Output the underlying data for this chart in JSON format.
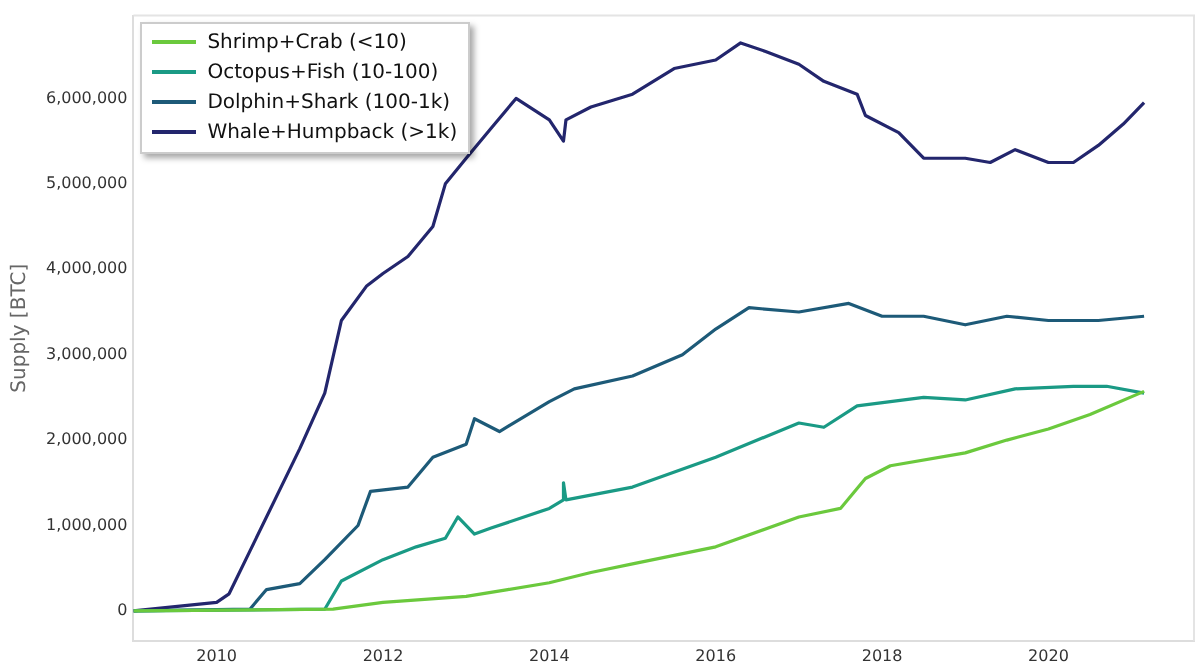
{
  "chart_data": {
    "type": "line",
    "ylabel": "Supply [BTC]",
    "legend": "top left",
    "grid": false,
    "marker": "none",
    "line_style": "solid",
    "xlim": [
      2009,
      2021.75
    ],
    "xticks": [
      2010,
      2012,
      2014,
      2016,
      2018,
      2020
    ],
    "ylim": [
      -350000,
      6970000
    ],
    "yticks": [
      {
        "value": 0,
        "label": "0"
      },
      {
        "value": 1000000,
        "label": "1,000,000"
      },
      {
        "value": 2000000,
        "label": "2,000,000"
      },
      {
        "value": 3000000,
        "label": "3,000,000"
      },
      {
        "value": 4000000,
        "label": "4,000,000"
      },
      {
        "value": 5000000,
        "label": "5,000,000"
      },
      {
        "value": 6000000,
        "label": "6,000,000"
      }
    ],
    "series": [
      {
        "name": "Shrimp+Crab (<10)",
        "color": "#6bc93d",
        "x": [
          2009,
          2011.4,
          2012,
          2013,
          2013.5,
          2014,
          2014.5,
          2015,
          2016,
          2017,
          2017.5,
          2017.8,
          2018.1,
          2019,
          2019.5,
          2020,
          2020.5,
          2021.15
        ],
        "values": [
          0,
          20000,
          100000,
          170000,
          250000,
          330000,
          450000,
          550000,
          750000,
          1100000,
          1200000,
          1550000,
          1700000,
          1850000,
          2000000,
          2130000,
          2300000,
          2570000
        ]
      },
      {
        "name": "Octopus+Fish (10-100)",
        "color": "#1a9a85",
        "x": [
          2009,
          2011.3,
          2011.5,
          2012,
          2012.4,
          2012.75,
          2012.9,
          2013.1,
          2013.3,
          2014,
          2014.17,
          2014.17,
          2014.2,
          2015,
          2016,
          2017,
          2017.3,
          2017.7,
          2018.5,
          2019,
          2019.6,
          2020.3,
          2020.7,
          2021.15
        ],
        "values": [
          0,
          20000,
          350000,
          600000,
          750000,
          850000,
          1100000,
          900000,
          970000,
          1200000,
          1300000,
          1500000,
          1300000,
          1450000,
          1800000,
          2200000,
          2150000,
          2400000,
          2500000,
          2470000,
          2600000,
          2630000,
          2630000,
          2550000
        ]
      },
      {
        "name": "Dolphin+Shark (100-1k)",
        "color": "#1d5a78",
        "x": [
          2009,
          2010.4,
          2010.6,
          2011,
          2011.3,
          2011.7,
          2011.85,
          2012.3,
          2012.6,
          2013,
          2013.1,
          2013.4,
          2014,
          2014.3,
          2015,
          2015.6,
          2016,
          2016.4,
          2017,
          2017.6,
          2018,
          2018.5,
          2019,
          2019.5,
          2020,
          2020.6,
          2021.15
        ],
        "values": [
          0,
          20000,
          250000,
          320000,
          600000,
          1000000,
          1400000,
          1450000,
          1800000,
          1950000,
          2250000,
          2100000,
          2450000,
          2600000,
          2750000,
          3000000,
          3300000,
          3550000,
          3500000,
          3600000,
          3450000,
          3450000,
          3350000,
          3450000,
          3400000,
          3400000,
          3450000
        ]
      },
      {
        "name": "Whale+Humpback (>1k)",
        "color": "#23266d",
        "x": [
          2009,
          2009.5,
          2010,
          2010.15,
          2010.4,
          2010.7,
          2011,
          2011.3,
          2011.5,
          2011.8,
          2012,
          2012.3,
          2012.6,
          2012.75,
          2013,
          2013.3,
          2013.6,
          2014,
          2014.17,
          2014.2,
          2014.5,
          2015,
          2015.5,
          2016,
          2016.3,
          2016.6,
          2017,
          2017.3,
          2017.7,
          2017.8,
          2018.2,
          2018.5,
          2019,
          2019.3,
          2019.6,
          2020,
          2020.3,
          2020.6,
          2020.9,
          2021.15
        ],
        "values": [
          0,
          50000,
          100000,
          200000,
          700000,
          1300000,
          1900000,
          2550000,
          3400000,
          3800000,
          3950000,
          4150000,
          4500000,
          5000000,
          5300000,
          5650000,
          6000000,
          5750000,
          5500000,
          5750000,
          5900000,
          6050000,
          6350000,
          6450000,
          6650000,
          6550000,
          6400000,
          6200000,
          6050000,
          5800000,
          5600000,
          5300000,
          5300000,
          5250000,
          5400000,
          5250000,
          5250000,
          5450000,
          5700000,
          5950000
        ]
      }
    ]
  }
}
